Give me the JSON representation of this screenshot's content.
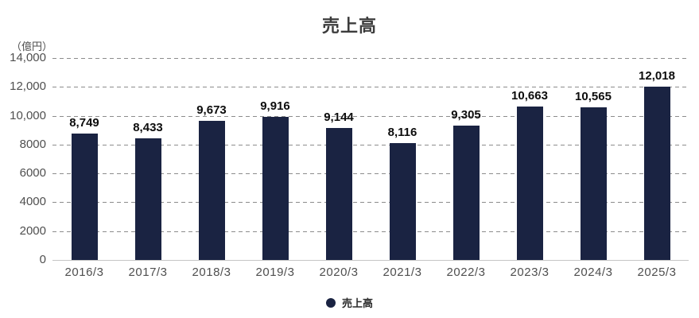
{
  "title": "売上高",
  "unit_label": "（億円）",
  "legend": {
    "label": "売上高",
    "marker_icon": "circle-marker-icon",
    "marker_color": "#1a2342"
  },
  "colors": {
    "bar": "#1a2342",
    "gridline": "#8c8c8c",
    "baseline": "#c6c6c6",
    "axis_text": "#4f4f4f",
    "value_text": "#0d0d0d",
    "title_text": "#3c3c3c"
  },
  "chart_data": {
    "type": "bar",
    "title": "売上高",
    "categories": [
      "2016/3",
      "2017/3",
      "2018/3",
      "2019/3",
      "2020/3",
      "2021/3",
      "2022/3",
      "2023/3",
      "2024/3",
      "2025/3"
    ],
    "values": [
      8749,
      8433,
      9673,
      9916,
      9144,
      8116,
      9305,
      10663,
      10565,
      12018
    ],
    "value_labels": [
      "8,749",
      "8,433",
      "9,673",
      "9,916",
      "9,144",
      "8,116",
      "9,305",
      "10,663",
      "10,565",
      "12,018"
    ],
    "xlabel": "",
    "ylabel": "（億円）",
    "ylim": [
      0,
      14000
    ],
    "ytick_values": [
      0,
      2000,
      4000,
      6000,
      8000,
      10000,
      12000,
      14000
    ],
    "ytick_labels": [
      "0",
      "2000",
      "4000",
      "6000",
      "8000",
      "10,000",
      "12,000",
      "14,000"
    ],
    "grid": "horizontal-dashed",
    "legend_position": "bottom-center",
    "bar_color": "#1a2342"
  }
}
